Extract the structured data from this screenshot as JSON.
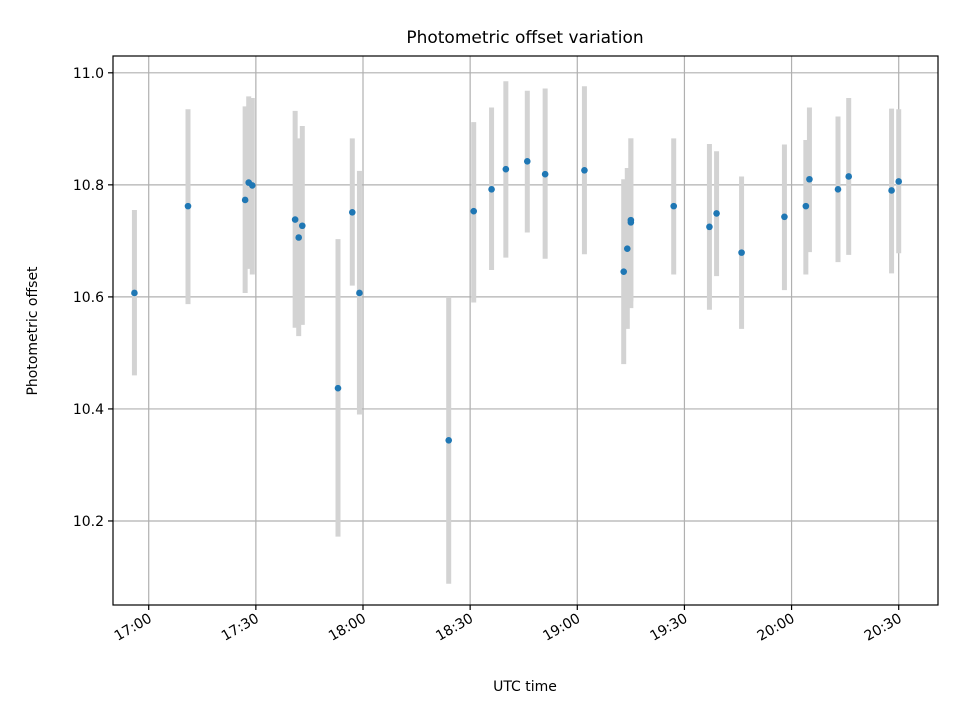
{
  "chart_data": {
    "type": "scatter",
    "title": "Photometric offset variation",
    "xlabel": "UTC time",
    "ylabel": "Photometric offset",
    "grid": true,
    "x_ticks": [
      "17:00",
      "17:30",
      "18:00",
      "18:30",
      "19:00",
      "19:30",
      "20:00",
      "20:30"
    ],
    "y_ticks": [
      "10.2",
      "10.4",
      "10.6",
      "10.8",
      "11.0"
    ],
    "ylim": [
      10.05,
      11.03
    ],
    "xlim": [
      "16:50",
      "20:41"
    ],
    "colors": {
      "point": "#1f77b4",
      "errorbar": "#d3d3d3"
    },
    "series": [
      {
        "points": [
          {
            "x": "16:56",
            "y": 10.607,
            "lo": 10.46,
            "hi": 10.755
          },
          {
            "x": "17:11",
            "y": 10.762,
            "lo": 10.587,
            "hi": 10.935
          },
          {
            "x": "17:27",
            "y": 10.773,
            "lo": 10.607,
            "hi": 10.94
          },
          {
            "x": "17:28",
            "y": 10.804,
            "lo": 10.65,
            "hi": 10.958
          },
          {
            "x": "17:29",
            "y": 10.799,
            "lo": 10.64,
            "hi": 10.955
          },
          {
            "x": "17:41",
            "y": 10.738,
            "lo": 10.545,
            "hi": 10.932
          },
          {
            "x": "17:42",
            "y": 10.706,
            "lo": 10.53,
            "hi": 10.883
          },
          {
            "x": "17:43",
            "y": 10.727,
            "lo": 10.55,
            "hi": 10.905
          },
          {
            "x": "17:53",
            "y": 10.437,
            "lo": 10.172,
            "hi": 10.703
          },
          {
            "x": "17:57",
            "y": 10.751,
            "lo": 10.62,
            "hi": 10.883
          },
          {
            "x": "17:59",
            "y": 10.607,
            "lo": 10.39,
            "hi": 10.825
          },
          {
            "x": "18:24",
            "y": 10.344,
            "lo": 10.088,
            "hi": 10.6
          },
          {
            "x": "18:31",
            "y": 10.753,
            "lo": 10.59,
            "hi": 10.912
          },
          {
            "x": "18:36",
            "y": 10.792,
            "lo": 10.648,
            "hi": 10.938
          },
          {
            "x": "18:40",
            "y": 10.828,
            "lo": 10.67,
            "hi": 10.985
          },
          {
            "x": "18:46",
            "y": 10.842,
            "lo": 10.715,
            "hi": 10.968
          },
          {
            "x": "18:51",
            "y": 10.819,
            "lo": 10.668,
            "hi": 10.972
          },
          {
            "x": "19:02",
            "y": 10.826,
            "lo": 10.676,
            "hi": 10.976
          },
          {
            "x": "19:13",
            "y": 10.645,
            "lo": 10.48,
            "hi": 10.81
          },
          {
            "x": "19:14",
            "y": 10.686,
            "lo": 10.543,
            "hi": 10.83
          },
          {
            "x": "19:15",
            "y": 10.733,
            "lo": 10.58,
            "hi": 10.883
          },
          {
            "x": "19:15",
            "y": 10.737,
            "lo": 10.592,
            "hi": 10.883
          },
          {
            "x": "19:27",
            "y": 10.762,
            "lo": 10.64,
            "hi": 10.883
          },
          {
            "x": "19:37",
            "y": 10.725,
            "lo": 10.577,
            "hi": 10.873
          },
          {
            "x": "19:39",
            "y": 10.749,
            "lo": 10.637,
            "hi": 10.86
          },
          {
            "x": "19:46",
            "y": 10.679,
            "lo": 10.543,
            "hi": 10.815
          },
          {
            "x": "19:58",
            "y": 10.743,
            "lo": 10.612,
            "hi": 10.872
          },
          {
            "x": "20:04",
            "y": 10.762,
            "lo": 10.64,
            "hi": 10.88
          },
          {
            "x": "20:05",
            "y": 10.81,
            "lo": 10.68,
            "hi": 10.938
          },
          {
            "x": "20:13",
            "y": 10.792,
            "lo": 10.662,
            "hi": 10.922
          },
          {
            "x": "20:16",
            "y": 10.815,
            "lo": 10.675,
            "hi": 10.955
          },
          {
            "x": "20:28",
            "y": 10.79,
            "lo": 10.642,
            "hi": 10.936
          },
          {
            "x": "20:30",
            "y": 10.806,
            "lo": 10.678,
            "hi": 10.935
          }
        ]
      }
    ]
  }
}
